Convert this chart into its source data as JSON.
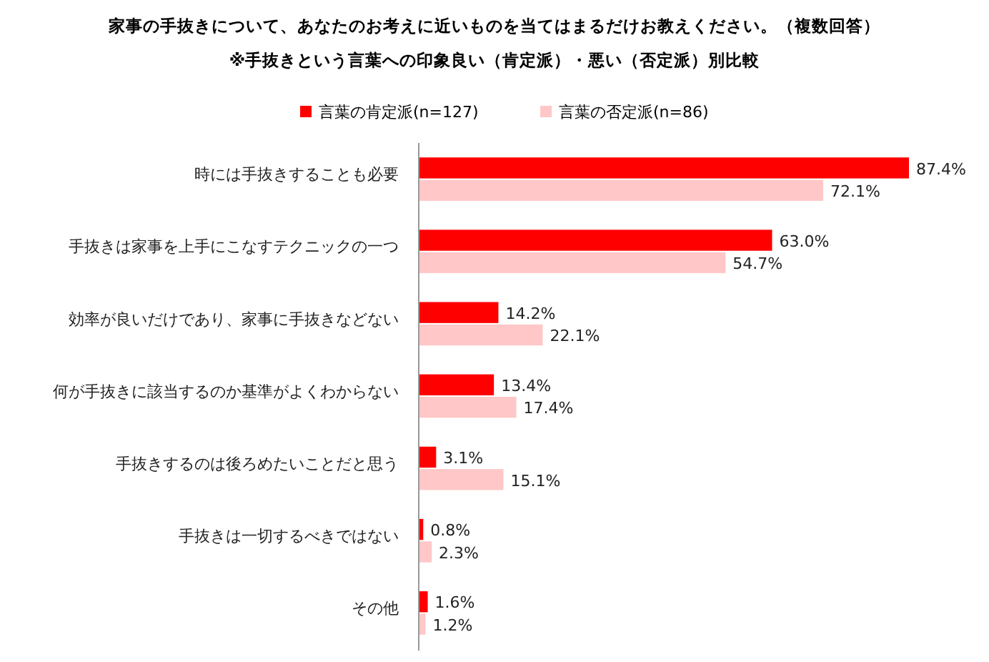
{
  "chart_data": {
    "type": "bar",
    "orientation": "horizontal",
    "title": "家事の手抜きについて、あなたのお考えに近いものを当てはまるだけお教えください。（複数回答）",
    "subtitle": "※手抜きという言葉への印象良い（肯定派）・悪い（否定派）別比較",
    "categories": [
      "時には手抜きすることも必要",
      "手抜きは家事を上手にこなすテクニックの一つ",
      "効率が良いだけであり、家事に手抜きなどない",
      "何が手抜きに該当するのか基準がよくわからない",
      "手抜きするのは後ろめたいことだと思う",
      "手抜きは一切するべきではない",
      "その他"
    ],
    "series": [
      {
        "name": "言葉の肯定派(n=127)",
        "color": "#ff0000",
        "values": [
          87.4,
          63.0,
          14.2,
          13.4,
          3.1,
          0.8,
          1.6
        ],
        "value_labels": [
          "87.4%",
          "63.0%",
          "14.2%",
          "13.4%",
          "3.1%",
          "0.8%",
          "1.6%"
        ]
      },
      {
        "name": "言葉の否定派(n=86)",
        "color": "#ffc7c7",
        "values": [
          72.1,
          54.7,
          22.1,
          17.4,
          15.1,
          2.3,
          1.2
        ],
        "value_labels": [
          "72.1%",
          "54.7%",
          "22.1%",
          "17.4%",
          "15.1%",
          "2.3%",
          "1.2%"
        ]
      }
    ],
    "legend": "top",
    "grid": false
  }
}
